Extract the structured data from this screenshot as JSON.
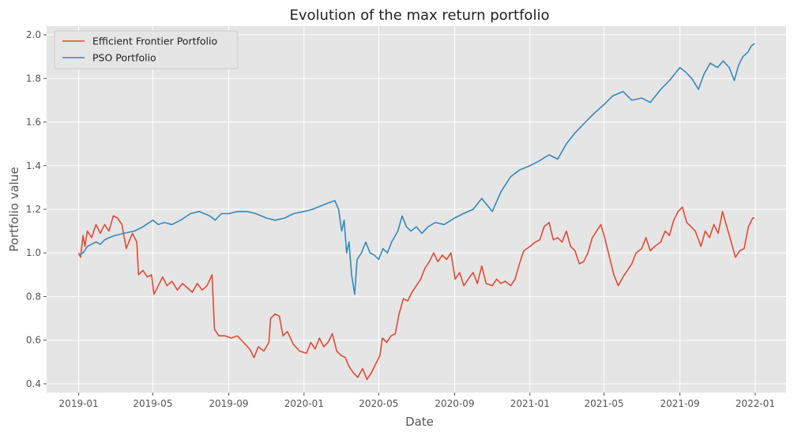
{
  "chart_data": {
    "type": "line",
    "title": "Evolution of the max return portfolio",
    "xlabel": "Date",
    "ylabel": "Portfolio value",
    "xlim": [
      "2018-11-10",
      "2022-02-20"
    ],
    "ylim": [
      0.36,
      2.04
    ],
    "x_ticks": [
      "2019-01",
      "2019-05",
      "2019-09",
      "2020-01",
      "2020-05",
      "2020-09",
      "2021-01",
      "2021-05",
      "2021-09",
      "2022-01"
    ],
    "y_ticks": [
      "0.4",
      "0.6",
      "0.8",
      "1.0",
      "1.2",
      "1.4",
      "1.6",
      "1.8",
      "2.0"
    ],
    "grid": true,
    "legend_position": "top-left",
    "series": [
      {
        "name": "Efficient Frontier Portfolio",
        "color": "#E24A33",
        "points": [
          [
            "2019-01-01",
            1.0
          ],
          [
            "2019-01-04",
            0.98
          ],
          [
            "2019-01-08",
            1.08
          ],
          [
            "2019-01-11",
            1.03
          ],
          [
            "2019-01-15",
            1.1
          ],
          [
            "2019-01-22",
            1.07
          ],
          [
            "2019-01-29",
            1.13
          ],
          [
            "2019-02-05",
            1.09
          ],
          [
            "2019-02-12",
            1.13
          ],
          [
            "2019-02-19",
            1.1
          ],
          [
            "2019-02-26",
            1.17
          ],
          [
            "2019-03-05",
            1.16
          ],
          [
            "2019-03-12",
            1.13
          ],
          [
            "2019-03-19",
            1.02
          ],
          [
            "2019-03-26",
            1.07
          ],
          [
            "2019-03-29",
            1.09
          ],
          [
            "2019-04-05",
            1.05
          ],
          [
            "2019-04-08",
            0.9
          ],
          [
            "2019-04-15",
            0.92
          ],
          [
            "2019-04-22",
            0.89
          ],
          [
            "2019-04-29",
            0.9
          ],
          [
            "2019-05-03",
            0.81
          ],
          [
            "2019-05-10",
            0.85
          ],
          [
            "2019-05-17",
            0.89
          ],
          [
            "2019-05-24",
            0.85
          ],
          [
            "2019-06-01",
            0.87
          ],
          [
            "2019-06-10",
            0.83
          ],
          [
            "2019-06-18",
            0.86
          ],
          [
            "2019-06-26",
            0.84
          ],
          [
            "2019-07-04",
            0.82
          ],
          [
            "2019-07-12",
            0.86
          ],
          [
            "2019-07-20",
            0.83
          ],
          [
            "2019-07-28",
            0.85
          ],
          [
            "2019-08-05",
            0.9
          ],
          [
            "2019-08-09",
            0.65
          ],
          [
            "2019-08-16",
            0.62
          ],
          [
            "2019-08-26",
            0.62
          ],
          [
            "2019-09-05",
            0.61
          ],
          [
            "2019-09-15",
            0.62
          ],
          [
            "2019-09-25",
            0.59
          ],
          [
            "2019-10-05",
            0.56
          ],
          [
            "2019-10-12",
            0.52
          ],
          [
            "2019-10-19",
            0.57
          ],
          [
            "2019-10-28",
            0.55
          ],
          [
            "2019-11-05",
            0.59
          ],
          [
            "2019-11-08",
            0.7
          ],
          [
            "2019-11-15",
            0.72
          ],
          [
            "2019-11-22",
            0.71
          ],
          [
            "2019-11-28",
            0.62
          ],
          [
            "2019-12-05",
            0.64
          ],
          [
            "2019-12-15",
            0.58
          ],
          [
            "2019-12-25",
            0.55
          ],
          [
            "2020-01-05",
            0.54
          ],
          [
            "2020-01-12",
            0.59
          ],
          [
            "2020-01-19",
            0.56
          ],
          [
            "2020-01-26",
            0.61
          ],
          [
            "2020-02-02",
            0.57
          ],
          [
            "2020-02-09",
            0.59
          ],
          [
            "2020-02-16",
            0.63
          ],
          [
            "2020-02-23",
            0.55
          ],
          [
            "2020-03-01",
            0.53
          ],
          [
            "2020-03-08",
            0.52
          ],
          [
            "2020-03-14",
            0.48
          ],
          [
            "2020-03-21",
            0.45
          ],
          [
            "2020-03-28",
            0.43
          ],
          [
            "2020-04-05",
            0.47
          ],
          [
            "2020-04-12",
            0.42
          ],
          [
            "2020-04-19",
            0.45
          ],
          [
            "2020-04-26",
            0.49
          ],
          [
            "2020-05-03",
            0.53
          ],
          [
            "2020-05-07",
            0.61
          ],
          [
            "2020-05-14",
            0.59
          ],
          [
            "2020-05-21",
            0.62
          ],
          [
            "2020-05-28",
            0.63
          ],
          [
            "2020-06-03",
            0.72
          ],
          [
            "2020-06-10",
            0.79
          ],
          [
            "2020-06-17",
            0.78
          ],
          [
            "2020-06-24",
            0.82
          ],
          [
            "2020-07-01",
            0.85
          ],
          [
            "2020-07-08",
            0.88
          ],
          [
            "2020-07-15",
            0.93
          ],
          [
            "2020-07-22",
            0.96
          ],
          [
            "2020-07-29",
            1.0
          ],
          [
            "2020-08-05",
            0.96
          ],
          [
            "2020-08-12",
            0.99
          ],
          [
            "2020-08-19",
            0.97
          ],
          [
            "2020-08-26",
            1.0
          ],
          [
            "2020-09-02",
            0.88
          ],
          [
            "2020-09-09",
            0.91
          ],
          [
            "2020-09-16",
            0.85
          ],
          [
            "2020-09-23",
            0.88
          ],
          [
            "2020-10-01",
            0.91
          ],
          [
            "2020-10-08",
            0.86
          ],
          [
            "2020-10-15",
            0.94
          ],
          [
            "2020-10-22",
            0.86
          ],
          [
            "2020-11-01",
            0.85
          ],
          [
            "2020-11-08",
            0.88
          ],
          [
            "2020-11-15",
            0.86
          ],
          [
            "2020-11-22",
            0.87
          ],
          [
            "2020-12-01",
            0.85
          ],
          [
            "2020-12-08",
            0.88
          ],
          [
            "2020-12-15",
            0.95
          ],
          [
            "2020-12-22",
            1.01
          ],
          [
            "2021-01-01",
            1.03
          ],
          [
            "2021-01-10",
            1.05
          ],
          [
            "2021-01-17",
            1.06
          ],
          [
            "2021-01-24",
            1.12
          ],
          [
            "2021-02-01",
            1.14
          ],
          [
            "2021-02-08",
            1.06
          ],
          [
            "2021-02-15",
            1.07
          ],
          [
            "2021-02-22",
            1.05
          ],
          [
            "2021-03-01",
            1.1
          ],
          [
            "2021-03-08",
            1.03
          ],
          [
            "2021-03-15",
            1.01
          ],
          [
            "2021-03-22",
            0.95
          ],
          [
            "2021-03-29",
            0.96
          ],
          [
            "2021-04-05",
            1.0
          ],
          [
            "2021-04-12",
            1.07
          ],
          [
            "2021-04-19",
            1.1
          ],
          [
            "2021-04-26",
            1.13
          ],
          [
            "2021-05-03",
            1.06
          ],
          [
            "2021-05-10",
            0.98
          ],
          [
            "2021-05-17",
            0.9
          ],
          [
            "2021-05-24",
            0.85
          ],
          [
            "2021-06-01",
            0.89
          ],
          [
            "2021-06-08",
            0.92
          ],
          [
            "2021-06-15",
            0.95
          ],
          [
            "2021-06-22",
            1.0
          ],
          [
            "2021-07-01",
            1.02
          ],
          [
            "2021-07-08",
            1.07
          ],
          [
            "2021-07-15",
            1.01
          ],
          [
            "2021-07-22",
            1.03
          ],
          [
            "2021-08-01",
            1.05
          ],
          [
            "2021-08-08",
            1.1
          ],
          [
            "2021-08-15",
            1.08
          ],
          [
            "2021-08-22",
            1.15
          ],
          [
            "2021-08-29",
            1.19
          ],
          [
            "2021-09-05",
            1.21
          ],
          [
            "2021-09-12",
            1.14
          ],
          [
            "2021-09-19",
            1.12
          ],
          [
            "2021-09-26",
            1.1
          ],
          [
            "2021-10-05",
            1.03
          ],
          [
            "2021-10-12",
            1.1
          ],
          [
            "2021-10-19",
            1.07
          ],
          [
            "2021-10-26",
            1.13
          ],
          [
            "2021-11-02",
            1.09
          ],
          [
            "2021-11-09",
            1.19
          ],
          [
            "2021-11-16",
            1.12
          ],
          [
            "2021-11-23",
            1.05
          ],
          [
            "2021-11-30",
            0.98
          ],
          [
            "2021-12-07",
            1.01
          ],
          [
            "2021-12-14",
            1.02
          ],
          [
            "2021-12-21",
            1.12
          ],
          [
            "2021-12-28",
            1.16
          ],
          [
            "2021-12-31",
            1.16
          ]
        ]
      },
      {
        "name": "PSO Portfolio",
        "color": "#348ABD",
        "points": [
          [
            "2019-01-01",
            0.99
          ],
          [
            "2019-01-08",
            1.0
          ],
          [
            "2019-01-15",
            1.03
          ],
          [
            "2019-01-22",
            1.04
          ],
          [
            "2019-01-29",
            1.05
          ],
          [
            "2019-02-05",
            1.04
          ],
          [
            "2019-02-12",
            1.06
          ],
          [
            "2019-02-19",
            1.07
          ],
          [
            "2019-03-01",
            1.08
          ],
          [
            "2019-03-15",
            1.09
          ],
          [
            "2019-04-01",
            1.1
          ],
          [
            "2019-04-15",
            1.12
          ],
          [
            "2019-05-01",
            1.15
          ],
          [
            "2019-05-10",
            1.13
          ],
          [
            "2019-05-20",
            1.14
          ],
          [
            "2019-06-01",
            1.13
          ],
          [
            "2019-06-15",
            1.15
          ],
          [
            "2019-07-01",
            1.18
          ],
          [
            "2019-07-15",
            1.19
          ],
          [
            "2019-08-01",
            1.17
          ],
          [
            "2019-08-10",
            1.15
          ],
          [
            "2019-08-20",
            1.18
          ],
          [
            "2019-09-01",
            1.18
          ],
          [
            "2019-09-15",
            1.19
          ],
          [
            "2019-10-01",
            1.19
          ],
          [
            "2019-10-15",
            1.18
          ],
          [
            "2019-11-01",
            1.16
          ],
          [
            "2019-11-15",
            1.15
          ],
          [
            "2019-12-01",
            1.16
          ],
          [
            "2019-12-15",
            1.18
          ],
          [
            "2020-01-01",
            1.19
          ],
          [
            "2020-01-15",
            1.2
          ],
          [
            "2020-02-01",
            1.22
          ],
          [
            "2020-02-10",
            1.23
          ],
          [
            "2020-02-20",
            1.24
          ],
          [
            "2020-02-26",
            1.2
          ],
          [
            "2020-03-02",
            1.1
          ],
          [
            "2020-03-06",
            1.15
          ],
          [
            "2020-03-10",
            1.0
          ],
          [
            "2020-03-14",
            1.05
          ],
          [
            "2020-03-18",
            0.9
          ],
          [
            "2020-03-23",
            0.81
          ],
          [
            "2020-03-27",
            0.97
          ],
          [
            "2020-04-03",
            1.0
          ],
          [
            "2020-04-10",
            1.05
          ],
          [
            "2020-04-17",
            1.0
          ],
          [
            "2020-04-24",
            0.99
          ],
          [
            "2020-05-01",
            0.97
          ],
          [
            "2020-05-08",
            1.02
          ],
          [
            "2020-05-15",
            1.0
          ],
          [
            "2020-05-22",
            1.05
          ],
          [
            "2020-06-01",
            1.1
          ],
          [
            "2020-06-08",
            1.17
          ],
          [
            "2020-06-15",
            1.12
          ],
          [
            "2020-06-22",
            1.1
          ],
          [
            "2020-07-01",
            1.12
          ],
          [
            "2020-07-10",
            1.09
          ],
          [
            "2020-07-20",
            1.12
          ],
          [
            "2020-08-01",
            1.14
          ],
          [
            "2020-08-15",
            1.13
          ],
          [
            "2020-09-01",
            1.16
          ],
          [
            "2020-09-15",
            1.18
          ],
          [
            "2020-10-01",
            1.2
          ],
          [
            "2020-10-15",
            1.25
          ],
          [
            "2020-11-01",
            1.19
          ],
          [
            "2020-11-15",
            1.28
          ],
          [
            "2020-12-01",
            1.35
          ],
          [
            "2020-12-15",
            1.38
          ],
          [
            "2021-01-01",
            1.4
          ],
          [
            "2021-01-15",
            1.42
          ],
          [
            "2021-02-01",
            1.45
          ],
          [
            "2021-02-15",
            1.43
          ],
          [
            "2021-03-01",
            1.5
          ],
          [
            "2021-03-15",
            1.55
          ],
          [
            "2021-04-01",
            1.6
          ],
          [
            "2021-04-15",
            1.64
          ],
          [
            "2021-05-01",
            1.68
          ],
          [
            "2021-05-15",
            1.72
          ],
          [
            "2021-06-01",
            1.74
          ],
          [
            "2021-06-15",
            1.7
          ],
          [
            "2021-07-01",
            1.71
          ],
          [
            "2021-07-15",
            1.69
          ],
          [
            "2021-08-01",
            1.75
          ],
          [
            "2021-08-15",
            1.79
          ],
          [
            "2021-09-01",
            1.85
          ],
          [
            "2021-09-10",
            1.83
          ],
          [
            "2021-09-20",
            1.8
          ],
          [
            "2021-10-01",
            1.75
          ],
          [
            "2021-10-10",
            1.82
          ],
          [
            "2021-10-20",
            1.87
          ],
          [
            "2021-11-01",
            1.85
          ],
          [
            "2021-11-10",
            1.88
          ],
          [
            "2021-11-20",
            1.85
          ],
          [
            "2021-11-28",
            1.79
          ],
          [
            "2021-12-05",
            1.86
          ],
          [
            "2021-12-12",
            1.9
          ],
          [
            "2021-12-20",
            1.92
          ],
          [
            "2021-12-26",
            1.95
          ],
          [
            "2021-12-31",
            1.96
          ]
        ]
      }
    ]
  }
}
